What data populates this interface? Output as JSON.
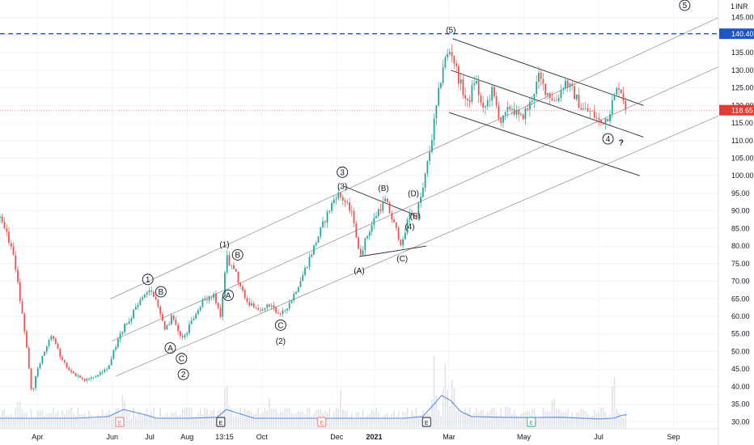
{
  "chart_data": {
    "type": "candlestick",
    "currency": "INR",
    "currency_badge": "1",
    "axes": {
      "y_ticks": [
        30,
        35,
        40,
        45,
        50,
        55,
        60,
        65,
        70,
        75,
        80,
        85,
        90,
        95,
        100,
        105,
        110,
        115,
        120,
        125,
        130,
        135,
        140,
        145
      ],
      "y_range": [
        28,
        150
      ],
      "x_ticks": [
        {
          "label": "Apr",
          "month": 3
        },
        {
          "label": "Jun",
          "month": 5
        },
        {
          "label": "Jul",
          "month": 6
        },
        {
          "label": "Aug",
          "month": 7
        },
        {
          "label": "13:15",
          "month": 8
        },
        {
          "label": "Oct",
          "month": 9
        },
        {
          "label": "Dec",
          "month": 11
        },
        {
          "label": "2021",
          "month": 12
        },
        {
          "label": "Mar",
          "month": 14
        },
        {
          "label": "May",
          "month": 16
        },
        {
          "label": "Jul",
          "month": 18
        },
        {
          "label": "Sep",
          "month": 20
        }
      ],
      "x_range_months": [
        2.0,
        21.2
      ],
      "last_data_month": 18.75
    },
    "price_levels": {
      "resistance": {
        "value": 140.4,
        "label": "140.40",
        "color": "#1e56c8"
      },
      "last_price": {
        "value": 118.65,
        "label": "118.65",
        "color": "#e53935"
      }
    },
    "price_path": [
      [
        2.0,
        88
      ],
      [
        2.3,
        80
      ],
      [
        2.5,
        68
      ],
      [
        2.7,
        52
      ],
      [
        2.85,
        38
      ],
      [
        3.0,
        45
      ],
      [
        3.2,
        50
      ],
      [
        3.4,
        55
      ],
      [
        3.6,
        49
      ],
      [
        3.8,
        45
      ],
      [
        4.0,
        43
      ],
      [
        4.3,
        42
      ],
      [
        4.6,
        43
      ],
      [
        4.9,
        46
      ],
      [
        5.2,
        55
      ],
      [
        5.5,
        60
      ],
      [
        5.8,
        65
      ],
      [
        6.0,
        68
      ],
      [
        6.2,
        64
      ],
      [
        6.4,
        56
      ],
      [
        6.6,
        60
      ],
      [
        6.85,
        53
      ],
      [
        7.1,
        58
      ],
      [
        7.4,
        64
      ],
      [
        7.7,
        66
      ],
      [
        7.9,
        60
      ],
      [
        8.05,
        77
      ],
      [
        8.3,
        72
      ],
      [
        8.6,
        64
      ],
      [
        8.9,
        62
      ],
      [
        9.2,
        63
      ],
      [
        9.5,
        60
      ],
      [
        9.8,
        65
      ],
      [
        10.1,
        72
      ],
      [
        10.4,
        80
      ],
      [
        10.7,
        88
      ],
      [
        11.0,
        95
      ],
      [
        11.2,
        93
      ],
      [
        11.45,
        88
      ],
      [
        11.6,
        77
      ],
      [
        11.85,
        84
      ],
      [
        12.1,
        90
      ],
      [
        12.3,
        93
      ],
      [
        12.5,
        87
      ],
      [
        12.75,
        80
      ],
      [
        12.95,
        90
      ],
      [
        13.1,
        88
      ],
      [
        13.3,
        96
      ],
      [
        13.5,
        108
      ],
      [
        13.7,
        122
      ],
      [
        13.85,
        132
      ],
      [
        14.05,
        136
      ],
      [
        14.25,
        128
      ],
      [
        14.5,
        120
      ],
      [
        14.7,
        128
      ],
      [
        14.9,
        118
      ],
      [
        15.15,
        124
      ],
      [
        15.4,
        115
      ],
      [
        15.65,
        120
      ],
      [
        15.9,
        116
      ],
      [
        16.15,
        120
      ],
      [
        16.4,
        128
      ],
      [
        16.6,
        124
      ],
      [
        16.85,
        121
      ],
      [
        17.1,
        127
      ],
      [
        17.3,
        124
      ],
      [
        17.55,
        119
      ],
      [
        17.8,
        118
      ],
      [
        18.05,
        115
      ],
      [
        18.25,
        117
      ],
      [
        18.4,
        122
      ],
      [
        18.55,
        126
      ],
      [
        18.75,
        118.65
      ]
    ],
    "volume_baseline": 30,
    "volume_line": [
      [
        2.0,
        31
      ],
      [
        3.0,
        31
      ],
      [
        4.0,
        31
      ],
      [
        4.9,
        31.5
      ],
      [
        5.3,
        33.5
      ],
      [
        5.7,
        32.5
      ],
      [
        6.2,
        31
      ],
      [
        7.0,
        31
      ],
      [
        7.8,
        31.3
      ],
      [
        8.05,
        33.5
      ],
      [
        8.35,
        32.5
      ],
      [
        8.8,
        31
      ],
      [
        10.0,
        31
      ],
      [
        11.0,
        31
      ],
      [
        12.0,
        31
      ],
      [
        12.8,
        31
      ],
      [
        13.3,
        31.5
      ],
      [
        13.6,
        35
      ],
      [
        13.8,
        37.5
      ],
      [
        14.05,
        36
      ],
      [
        14.3,
        33
      ],
      [
        14.6,
        31.5
      ],
      [
        15.3,
        31.3
      ],
      [
        16.0,
        31.2
      ],
      [
        17.0,
        31.3
      ],
      [
        18.0,
        30.8
      ],
      [
        18.4,
        31
      ],
      [
        18.6,
        31.8
      ],
      [
        18.75,
        32
      ]
    ],
    "volume_spikes": [
      [
        2.5,
        40
      ],
      [
        3.1,
        36
      ],
      [
        5.3,
        40
      ],
      [
        8.05,
        50
      ],
      [
        9.2,
        37
      ],
      [
        11.1,
        42
      ],
      [
        13.6,
        50
      ],
      [
        13.9,
        54
      ],
      [
        14.1,
        48
      ],
      [
        15.2,
        37
      ],
      [
        16.8,
        41
      ],
      [
        18.4,
        46
      ]
    ],
    "channels": [
      {
        "name": "impulse",
        "color": "#8a8a8a",
        "lines": [
          {
            "from": [
              4.95,
              65
            ],
            "to": [
              21.2,
              145
            ]
          },
          {
            "from": [
              5.0,
              53
            ],
            "to": [
              21.2,
              131
            ]
          },
          {
            "from": [
              5.1,
              43
            ],
            "to": [
              21.2,
              117
            ]
          }
        ]
      },
      {
        "name": "correction",
        "color": "#2a2a2a",
        "lines": [
          {
            "from": [
              14.1,
              139
            ],
            "to": [
              19.2,
              120
            ]
          },
          {
            "from": [
              14.05,
              130
            ],
            "to": [
              19.2,
              111
            ]
          },
          {
            "from": [
              14.0,
              118
            ],
            "to": [
              19.1,
              100
            ]
          }
        ]
      },
      {
        "name": "triangle",
        "color": "#2a2a2a",
        "lines": [
          {
            "from": [
              11.2,
              97
            ],
            "to": [
              13.05,
              89
            ]
          },
          {
            "from": [
              11.6,
              77
            ],
            "to": [
              13.4,
              80
            ]
          }
        ]
      }
    ],
    "events": [
      {
        "month": 5.2,
        "kind": "earnings",
        "letter": "E",
        "color": "#e57373"
      },
      {
        "month": 7.9,
        "kind": "earnings",
        "letter": "E",
        "color": "#131722"
      },
      {
        "month": 10.6,
        "kind": "earnings",
        "letter": "E",
        "color": "#e57373"
      },
      {
        "month": 13.4,
        "kind": "earnings",
        "letter": "E",
        "color": "#131722"
      },
      {
        "month": 16.2,
        "kind": "earnings",
        "letter": "E",
        "color": "#26a69a"
      }
    ],
    "annotations": [
      {
        "text": "1",
        "month": 5.95,
        "price": 70.5,
        "circled": true
      },
      {
        "text": "B",
        "month": 6.3,
        "price": 67,
        "circled": true
      },
      {
        "text": "A",
        "month": 6.55,
        "price": 51,
        "circled": true
      },
      {
        "text": "C",
        "month": 6.85,
        "price": 48,
        "circled": true
      },
      {
        "text": "2",
        "month": 6.9,
        "price": 43.5,
        "circled": true
      },
      {
        "text": "(1)",
        "month": 8.0,
        "price": 80.5,
        "circled": false
      },
      {
        "text": "B",
        "month": 8.35,
        "price": 77.5,
        "circled": true
      },
      {
        "text": "A",
        "month": 8.1,
        "price": 66,
        "circled": true
      },
      {
        "text": "C",
        "month": 9.5,
        "price": 57.5,
        "circled": true
      },
      {
        "text": "(2)",
        "month": 9.5,
        "price": 53,
        "circled": false
      },
      {
        "text": "3",
        "month": 11.15,
        "price": 101,
        "circled": true
      },
      {
        "text": "(3)",
        "month": 11.15,
        "price": 97,
        "circled": false
      },
      {
        "text": "(B)",
        "month": 12.25,
        "price": 96.5,
        "circled": false
      },
      {
        "text": "(D)",
        "month": 13.05,
        "price": 95,
        "circled": false
      },
      {
        "text": "(E)",
        "month": 13.1,
        "price": 88.5,
        "circled": false
      },
      {
        "text": "(4)",
        "month": 12.95,
        "price": 85.5,
        "circled": false
      },
      {
        "text": "(A)",
        "month": 11.6,
        "price": 73,
        "circled": false
      },
      {
        "text": "(C)",
        "month": 12.75,
        "price": 76.5,
        "circled": false
      },
      {
        "text": "(5)",
        "month": 14.05,
        "price": 141.5,
        "circled": false
      },
      {
        "text": "4",
        "month": 18.25,
        "price": 110.5,
        "circled": true
      },
      {
        "text": "?",
        "month": 18.6,
        "price": 109.5,
        "circled": false
      },
      {
        "text": "5",
        "month": 20.3,
        "price": 148.5,
        "circled": true
      }
    ]
  }
}
